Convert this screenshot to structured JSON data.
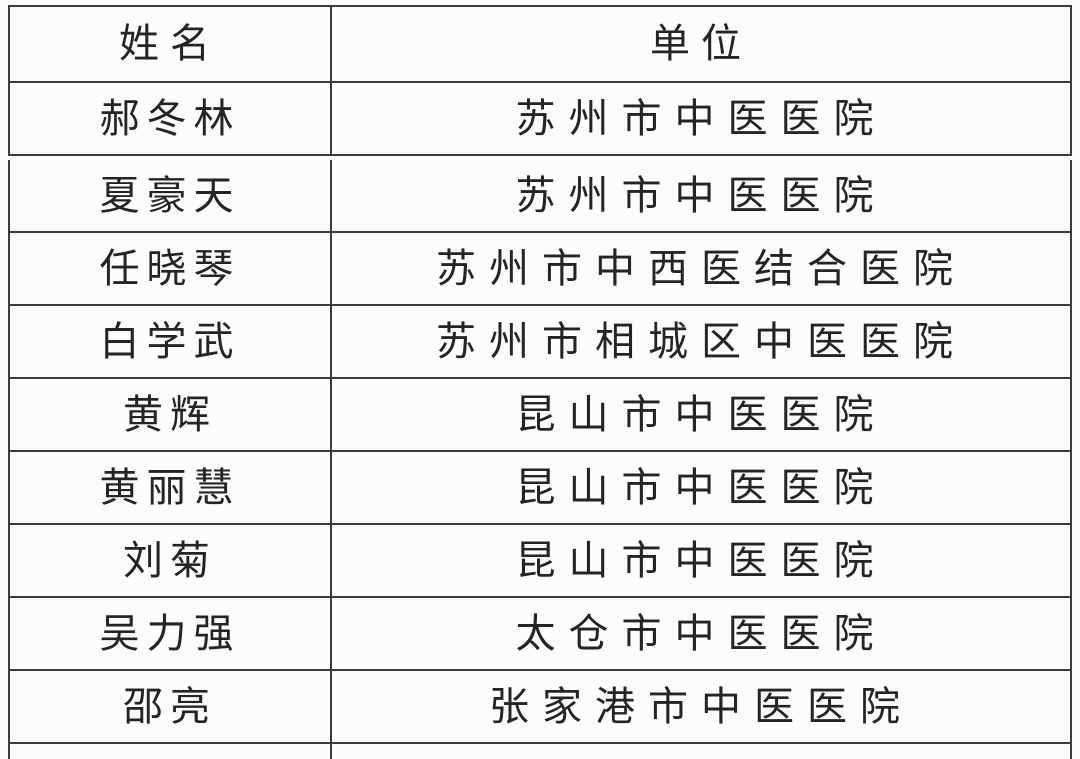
{
  "colors": {
    "background": "#fcfcfc",
    "border": "#3c3c3c",
    "text": "#242424"
  },
  "table": {
    "headers": {
      "name": "姓名",
      "unit": "单位"
    },
    "rows": [
      {
        "name": "郝冬林",
        "unit": "苏州市中医医院"
      },
      {
        "name": "夏豪天",
        "unit": "苏州市中医医院"
      },
      {
        "name": "任晓琴",
        "unit": "苏州市中西医结合医院"
      },
      {
        "name": "白学武",
        "unit": "苏州市相城区中医医院"
      },
      {
        "name": "黄辉",
        "unit": "昆山市中医医院"
      },
      {
        "name": "黄丽慧",
        "unit": "昆山市中医医院"
      },
      {
        "name": "刘菊",
        "unit": "昆山市中医医院"
      },
      {
        "name": "吴力强",
        "unit": "太仓市中医医院"
      },
      {
        "name": "邵亮",
        "unit": "张家港市中医医院"
      }
    ]
  }
}
